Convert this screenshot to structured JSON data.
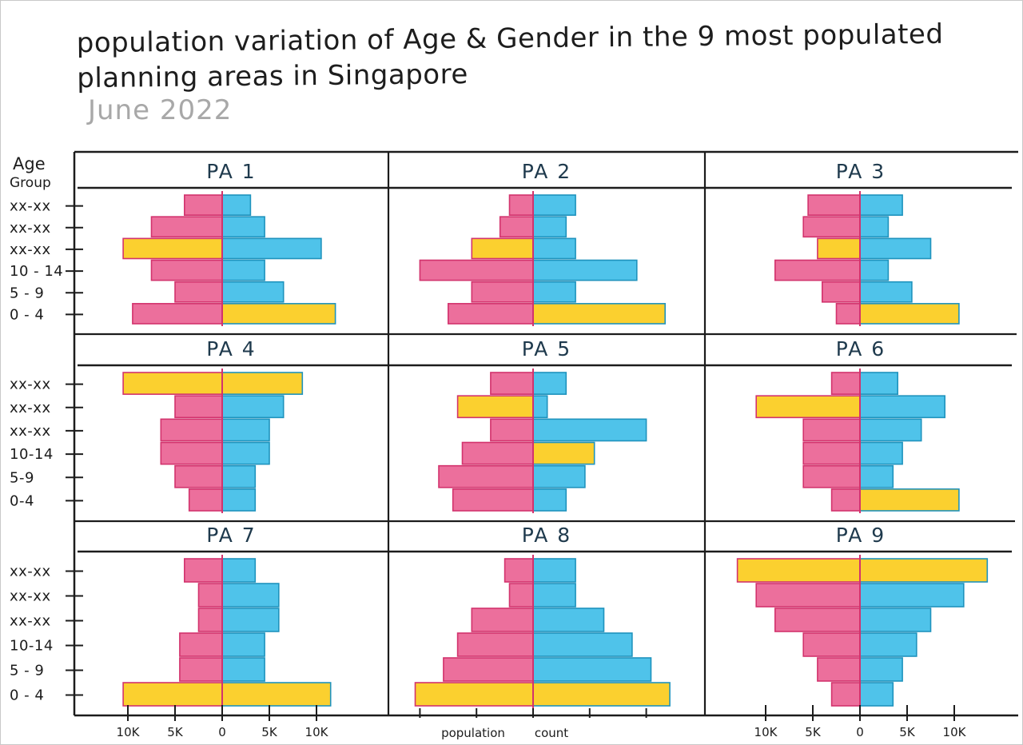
{
  "title": "population variation of Age & Gender in the 9 most populated planning areas in Singapore",
  "subtitle": "June 2022",
  "chart_data": {
    "type": "bar",
    "subtype": "population pyramid small multiples (3x3)",
    "title": "population variation of Age & Gender in the 9 most populated planning areas in Singapore",
    "subtitle": "June 2022",
    "ylabel": "Age Group",
    "xlabel": "population count",
    "x_ticks": [
      "10K",
      "5K",
      "0",
      "5K",
      "10K"
    ],
    "xlim": [
      -13,
      13
    ],
    "colors": {
      "female": "#ec6f9c",
      "male": "#4fc3ea",
      "highlight": "#fbd02f",
      "female_outline": "#d2336d",
      "male_outline": "#1f93bd"
    },
    "panels": [
      {
        "name": "PA 1",
        "age_groups": [
          "0 - 4",
          "5 - 9",
          "10 - 14",
          "xx-xx",
          "xx-xx",
          "xx-xx"
        ],
        "female": [
          9.5,
          5,
          7.5,
          10.5,
          7.5,
          4
        ],
        "male": [
          12,
          6.5,
          4.5,
          10.5,
          4.5,
          3
        ],
        "highlight_female": [
          3
        ],
        "highlight_male": [
          0
        ]
      },
      {
        "name": "PA 2",
        "age_groups": [],
        "female": [
          9,
          6.5,
          12,
          6.5,
          3.5,
          2.5
        ],
        "male": [
          14,
          4.5,
          11,
          4.5,
          3.5,
          4.5
        ],
        "highlight_female": [
          3
        ],
        "highlight_male": [
          0
        ]
      },
      {
        "name": "PA 3",
        "age_groups": [],
        "female": [
          2.5,
          4,
          9,
          4.5,
          6,
          5.5
        ],
        "male": [
          10.5,
          5.5,
          3,
          7.5,
          3,
          4.5
        ],
        "highlight_female": [
          3
        ],
        "highlight_male": [
          0
        ]
      },
      {
        "name": "PA 4",
        "age_groups": [
          "0-4",
          "5-9",
          "10-14",
          "xx-xx",
          "xx-xx",
          "xx-xx"
        ],
        "female": [
          3.5,
          5,
          6.5,
          6.5,
          5,
          10.5
        ],
        "male": [
          3.5,
          3.5,
          5,
          5,
          6.5,
          8.5
        ],
        "highlight_female": [
          5
        ],
        "highlight_male": [
          5
        ]
      },
      {
        "name": "PA 5",
        "age_groups": [],
        "female": [
          8.5,
          10,
          7.5,
          4.5,
          8,
          4.5
        ],
        "male": [
          3.5,
          5.5,
          6.5,
          12,
          1.5,
          3.5
        ],
        "highlight_female": [
          4
        ],
        "highlight_male": [
          2
        ]
      },
      {
        "name": "PA 6",
        "age_groups": [],
        "female": [
          3,
          6,
          6,
          6,
          11,
          3
        ],
        "male": [
          10.5,
          3.5,
          4.5,
          6.5,
          9,
          4
        ],
        "highlight_female": [
          4
        ],
        "highlight_male": [
          0
        ]
      },
      {
        "name": "PA 7",
        "age_groups": [
          "0 - 4",
          "5 - 9",
          "10-14",
          "xx-xx",
          "xx-xx",
          "xx-xx"
        ],
        "female": [
          10.5,
          4.5,
          4.5,
          2.5,
          2.5,
          4
        ],
        "male": [
          11.5,
          4.5,
          4.5,
          6,
          6,
          3.5
        ],
        "highlight_female": [
          0
        ],
        "highlight_male": [
          0
        ]
      },
      {
        "name": "PA 8",
        "age_groups": [],
        "female": [
          12.5,
          9.5,
          8,
          6.5,
          2.5,
          3
        ],
        "male": [
          14.5,
          12.5,
          10.5,
          7.5,
          4.5,
          4.5
        ],
        "highlight_female": [
          0
        ],
        "highlight_male": [
          0
        ]
      },
      {
        "name": "PA 9",
        "age_groups": [],
        "female": [
          3,
          4.5,
          6,
          9,
          11,
          13
        ],
        "male": [
          3.5,
          4.5,
          6,
          7.5,
          11,
          13.5
        ],
        "highlight_female": [
          5
        ],
        "highlight_male": [
          5
        ]
      }
    ],
    "grid": false,
    "legend": "none"
  }
}
